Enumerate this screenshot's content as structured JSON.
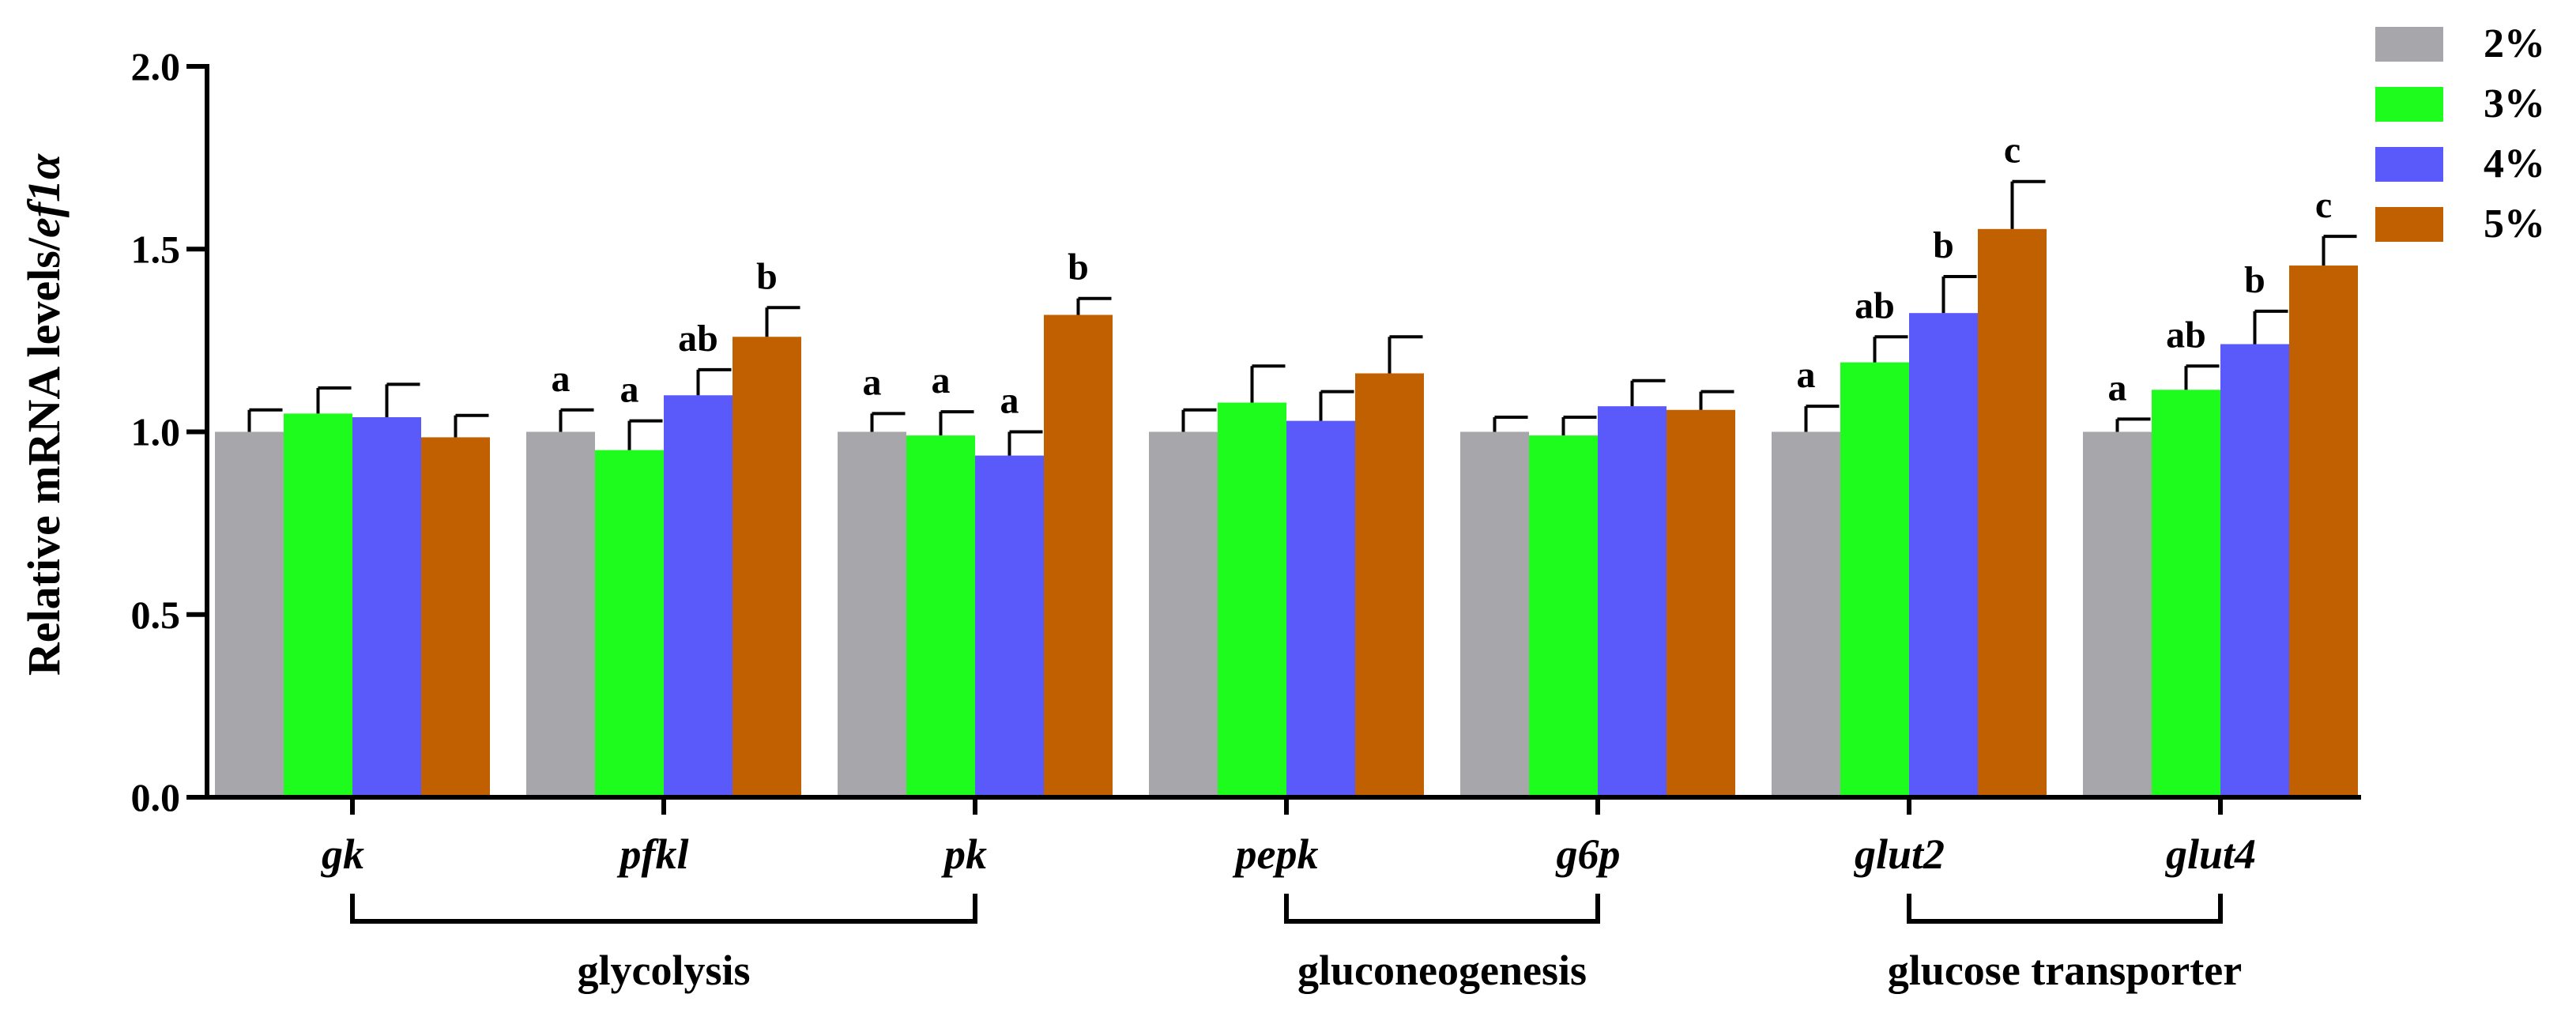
{
  "chart_data": {
    "type": "bar",
    "ylabel_prefix": "Relative mRNA levels/",
    "ylabel_italic": "ef1α",
    "ylim": [
      0,
      2.0
    ],
    "yticks": [
      "0.0",
      "0.5",
      "1.0",
      "1.5",
      "2.0"
    ],
    "legend_position": "top-right",
    "categories": [
      "gk",
      "pfkl",
      "pk",
      "pepk",
      "g6p",
      "glut2",
      "glut4"
    ],
    "series": [
      {
        "name": "2%",
        "color": "#a6a6ab",
        "values": [
          1.0,
          1.0,
          1.0,
          1.0,
          1.0,
          1.0,
          1.0
        ],
        "errors": [
          0.06,
          0.06,
          0.05,
          0.06,
          0.04,
          0.07,
          0.035
        ],
        "letters": [
          "",
          "a",
          "a",
          "",
          "",
          "a",
          "a"
        ]
      },
      {
        "name": "3%",
        "color": "#1efc1e",
        "values": [
          1.05,
          0.95,
          0.99,
          1.08,
          0.99,
          1.19,
          1.115
        ],
        "errors": [
          0.07,
          0.08,
          0.065,
          0.1,
          0.05,
          0.07,
          0.065
        ],
        "letters": [
          "",
          "a",
          "a",
          "",
          "",
          "ab",
          "ab"
        ]
      },
      {
        "name": "4%",
        "color": "#5a5afb",
        "values": [
          1.04,
          1.1,
          0.935,
          1.03,
          1.07,
          1.325,
          1.24
        ],
        "errors": [
          0.09,
          0.07,
          0.065,
          0.08,
          0.07,
          0.1,
          0.09
        ],
        "letters": [
          "",
          "ab",
          "a",
          "",
          "",
          "b",
          "b"
        ]
      },
      {
        "name": "5%",
        "color": "#c06000",
        "values": [
          0.985,
          1.26,
          1.32,
          1.16,
          1.06,
          1.555,
          1.455
        ],
        "errors": [
          0.06,
          0.08,
          0.045,
          0.1,
          0.05,
          0.13,
          0.08
        ],
        "letters": [
          "",
          "b",
          "b",
          "",
          "",
          "c",
          "c"
        ]
      }
    ],
    "groups": [
      {
        "label": "glycolysis",
        "from": 0,
        "to": 2
      },
      {
        "label": "gluconeogenesis",
        "from": 3,
        "to": 4
      },
      {
        "label": "glucose transporter",
        "from": 5,
        "to": 6
      }
    ]
  }
}
